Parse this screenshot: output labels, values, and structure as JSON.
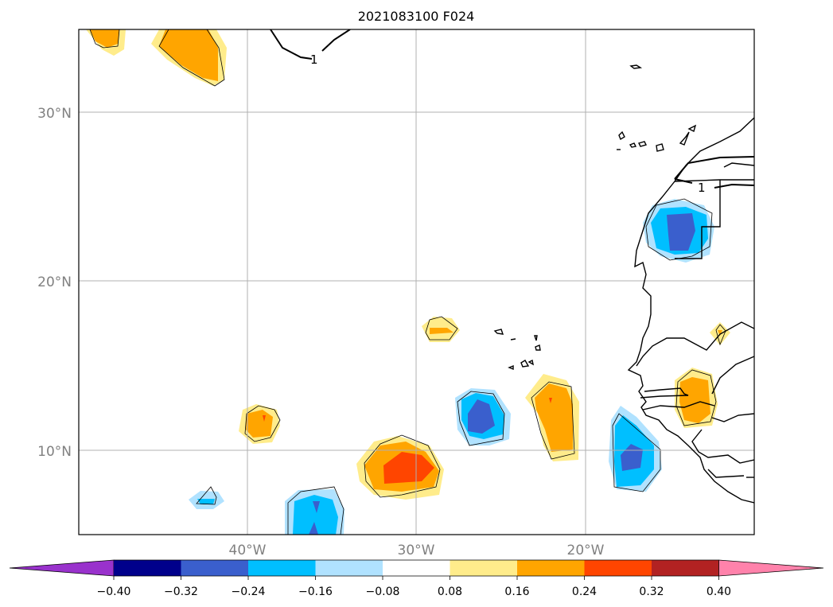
{
  "title": "2021083100 F024",
  "map": {
    "lat_ticks": [
      "30°N",
      "20°N",
      "10°N"
    ],
    "lon_ticks": [
      "40°W",
      "30°W",
      "20°W"
    ],
    "contour_labels": [
      "1",
      "1"
    ]
  },
  "colorbar": {
    "tick_labels": [
      "−0.40",
      "−0.32",
      "−0.24",
      "−0.16",
      "−0.08",
      "0.08",
      "0.16",
      "0.24",
      "0.32",
      "0.40"
    ],
    "colors": {
      "lt_-0.40": "#9932cc",
      "-0.40_-0.32": "#00008b",
      "-0.32_-0.24": "#3a5fcd",
      "-0.24_-0.16": "#00bfff",
      "-0.16_-0.08": "#b0e2ff",
      "-0.08_0.08": "#ffffff",
      "0.08_0.16": "#ffec8b",
      "0.16_0.24": "#ffa500",
      "0.24_0.32": "#ff4500",
      "0.32_0.40": "#b22222",
      "gt_0.40": "#ff82ab"
    }
  }
}
